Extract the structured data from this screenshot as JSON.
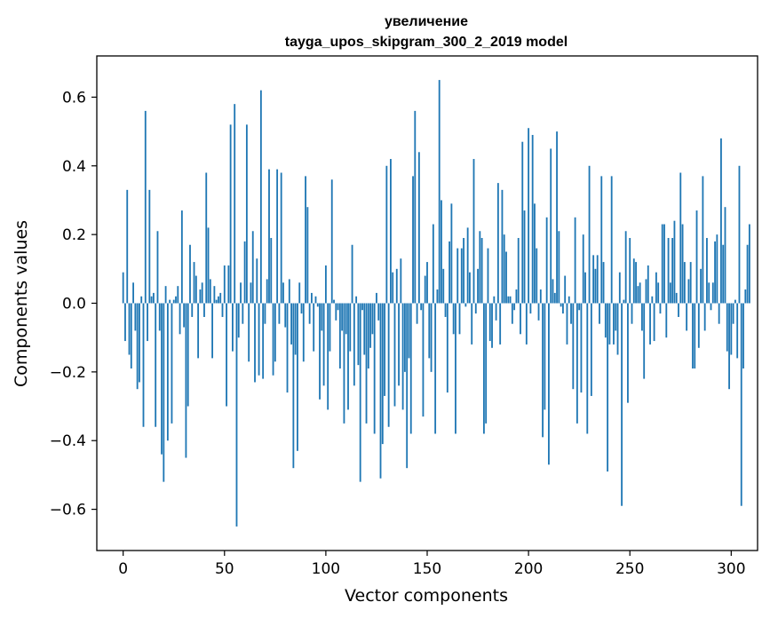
{
  "chart_data": {
    "type": "bar",
    "title_line1": "увеличение",
    "title_line2": "tayga_upos_skipgram_300_2_2019 model",
    "xlabel": "Vector components",
    "ylabel": "Components values",
    "xlim": [
      -13,
      313
    ],
    "ylim": [
      -0.72,
      0.72
    ],
    "xticks": [
      0,
      50,
      100,
      150,
      200,
      250,
      300
    ],
    "xtick_labels": [
      "0",
      "50",
      "100",
      "150",
      "200",
      "250",
      "300"
    ],
    "yticks": [
      -0.6,
      -0.4,
      -0.2,
      0.0,
      0.2,
      0.4,
      0.6
    ],
    "ytick_labels": [
      "−0.6",
      "−0.4",
      "−0.2",
      "0.0",
      "0.2",
      "0.4",
      "0.6"
    ],
    "bar_color": "#1f77b4",
    "grid": false,
    "x_start": 0,
    "values": [
      0.09,
      -0.11,
      0.33,
      -0.15,
      -0.19,
      0.06,
      -0.08,
      -0.25,
      -0.23,
      0.02,
      -0.36,
      0.56,
      -0.11,
      0.33,
      0.02,
      0.03,
      -0.36,
      0.21,
      -0.08,
      -0.44,
      -0.52,
      0.05,
      -0.4,
      0.01,
      -0.35,
      0.01,
      0.02,
      0.05,
      -0.09,
      0.27,
      -0.07,
      -0.45,
      -0.3,
      0.17,
      -0.04,
      0.12,
      0.08,
      -0.16,
      0.04,
      0.06,
      -0.04,
      0.38,
      0.22,
      0.07,
      -0.16,
      0.05,
      0.01,
      0.02,
      0.03,
      -0.04,
      0.11,
      -0.3,
      0.11,
      0.52,
      -0.14,
      0.58,
      -0.65,
      -0.1,
      0.06,
      -0.06,
      0.18,
      0.52,
      -0.17,
      0.06,
      0.21,
      -0.23,
      0.13,
      -0.21,
      0.62,
      -0.22,
      -0.06,
      0.07,
      0.39,
      0.19,
      -0.21,
      -0.17,
      0.39,
      -0.06,
      0.38,
      0.06,
      -0.07,
      -0.26,
      0.07,
      -0.12,
      -0.48,
      -0.15,
      -0.43,
      0.06,
      -0.03,
      -0.17,
      0.37,
      0.28,
      -0.06,
      0.03,
      -0.14,
      0.02,
      -0.01,
      -0.28,
      -0.08,
      -0.24,
      0.11,
      -0.31,
      -0.14,
      0.36,
      0.01,
      -0.05,
      -0.02,
      -0.19,
      -0.08,
      -0.35,
      -0.09,
      -0.31,
      -0.14,
      0.17,
      -0.24,
      0.02,
      -0.18,
      -0.52,
      -0.02,
      -0.15,
      -0.35,
      -0.19,
      -0.13,
      -0.09,
      -0.38,
      0.03,
      -0.05,
      -0.51,
      -0.41,
      -0.27,
      0.4,
      -0.36,
      0.42,
      0.09,
      -0.3,
      0.1,
      -0.24,
      0.13,
      -0.31,
      -0.2,
      -0.48,
      -0.16,
      -0.38,
      0.37,
      0.56,
      -0.06,
      0.44,
      -0.02,
      -0.33,
      0.08,
      0.12,
      -0.16,
      -0.2,
      0.23,
      -0.38,
      0.04,
      0.65,
      0.3,
      0.1,
      -0.04,
      -0.26,
      0.18,
      0.29,
      -0.09,
      -0.38,
      0.16,
      -0.09,
      0.16,
      0.19,
      -0.01,
      0.22,
      0.09,
      -0.12,
      0.42,
      -0.03,
      0.1,
      0.21,
      0.19,
      -0.38,
      -0.35,
      0.16,
      -0.11,
      -0.13,
      0.02,
      -0.05,
      0.35,
      -0.12,
      0.33,
      0.2,
      0.15,
      0.02,
      0.02,
      -0.06,
      -0.02,
      0.04,
      0.19,
      -0.09,
      0.47,
      0.27,
      -0.12,
      0.51,
      -0.03,
      0.49,
      0.29,
      0.16,
      -0.05,
      0.04,
      -0.39,
      -0.31,
      0.25,
      -0.47,
      0.45,
      0.07,
      0.03,
      0.5,
      0.21,
      -0.01,
      -0.03,
      0.08,
      -0.12,
      0.02,
      -0.06,
      -0.25,
      0.25,
      -0.35,
      -0.02,
      -0.26,
      0.2,
      0.09,
      -0.38,
      0.4,
      -0.27,
      0.14,
      0.1,
      0.14,
      -0.06,
      0.37,
      0.12,
      -0.1,
      -0.49,
      -0.12,
      0.37,
      -0.12,
      -0.08,
      -0.15,
      0.09,
      -0.59,
      0.01,
      0.21,
      -0.29,
      0.19,
      -0.06,
      0.13,
      0.12,
      0.05,
      0.06,
      -0.08,
      -0.22,
      0.07,
      0.11,
      -0.12,
      0.02,
      -0.11,
      0.09,
      0.06,
      -0.03,
      0.23,
      0.23,
      -0.1,
      0.19,
      0.06,
      0.19,
      0.24,
      0.03,
      -0.04,
      0.38,
      0.23,
      0.12,
      -0.08,
      0.07,
      0.12,
      -0.19,
      -0.19,
      0.27,
      -0.13,
      0.1,
      0.37,
      -0.08,
      0.19,
      0.06,
      -0.02,
      0.06,
      0.18,
      0.2,
      -0.06,
      0.48,
      0.17,
      0.28,
      -0.14,
      -0.25,
      -0.15,
      -0.06,
      0.01,
      -0.16,
      0.4,
      -0.59,
      -0.19,
      0.04,
      0.17,
      0.23
    ]
  }
}
